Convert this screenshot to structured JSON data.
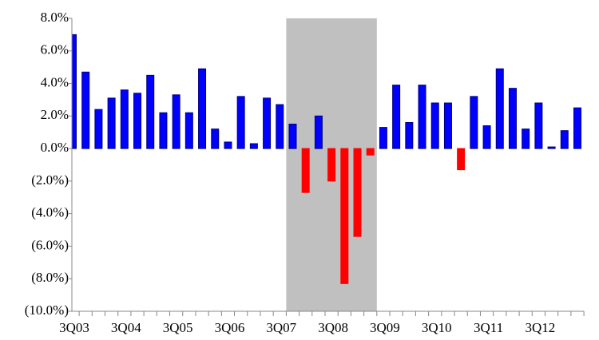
{
  "chart_data": {
    "type": "bar",
    "categories": [
      "3Q03",
      null,
      null,
      null,
      "3Q04",
      null,
      null,
      null,
      "3Q05",
      null,
      null,
      null,
      "3Q06",
      null,
      null,
      null,
      "3Q07",
      null,
      null,
      null,
      "3Q08",
      null,
      null,
      null,
      "3Q09",
      null,
      null,
      null,
      "3Q10",
      null,
      null,
      null,
      "3Q11",
      null,
      null,
      null,
      "3Q12",
      null,
      null,
      null
    ],
    "values": [
      7.0,
      4.7,
      2.4,
      3.1,
      3.6,
      3.4,
      4.5,
      2.2,
      3.3,
      2.2,
      4.9,
      1.2,
      0.4,
      3.2,
      0.3,
      3.1,
      2.7,
      1.5,
      -2.7,
      2.0,
      -2.0,
      -8.3,
      -5.4,
      -0.4,
      1.3,
      3.9,
      1.6,
      3.9,
      2.8,
      2.8,
      -1.3,
      3.2,
      1.4,
      4.9,
      3.7,
      1.2,
      2.8,
      0.1,
      1.1,
      2.5
    ],
    "color": "#0000ff",
    "negative_color": "#ff0000",
    "shade": {
      "start": 16.5,
      "end": 23.5,
      "color": "#c0c0c0"
    },
    "ylim": [
      -10,
      8
    ],
    "yticks": [
      {
        "value": 8,
        "label": "8.0%"
      },
      {
        "value": 6,
        "label": "6.0%"
      },
      {
        "value": 4,
        "label": "4.0%"
      },
      {
        "value": 2,
        "label": "2.0%"
      },
      {
        "value": 0,
        "label": "0.0%"
      },
      {
        "value": -2,
        "label": "(2.0%)"
      },
      {
        "value": -4,
        "label": "(4.0%)"
      },
      {
        "value": -6,
        "label": "(6.0%)"
      },
      {
        "value": -8,
        "label": "(8.0%)"
      },
      {
        "value": -10,
        "label": "(10.0%)"
      }
    ],
    "grid": false
  }
}
